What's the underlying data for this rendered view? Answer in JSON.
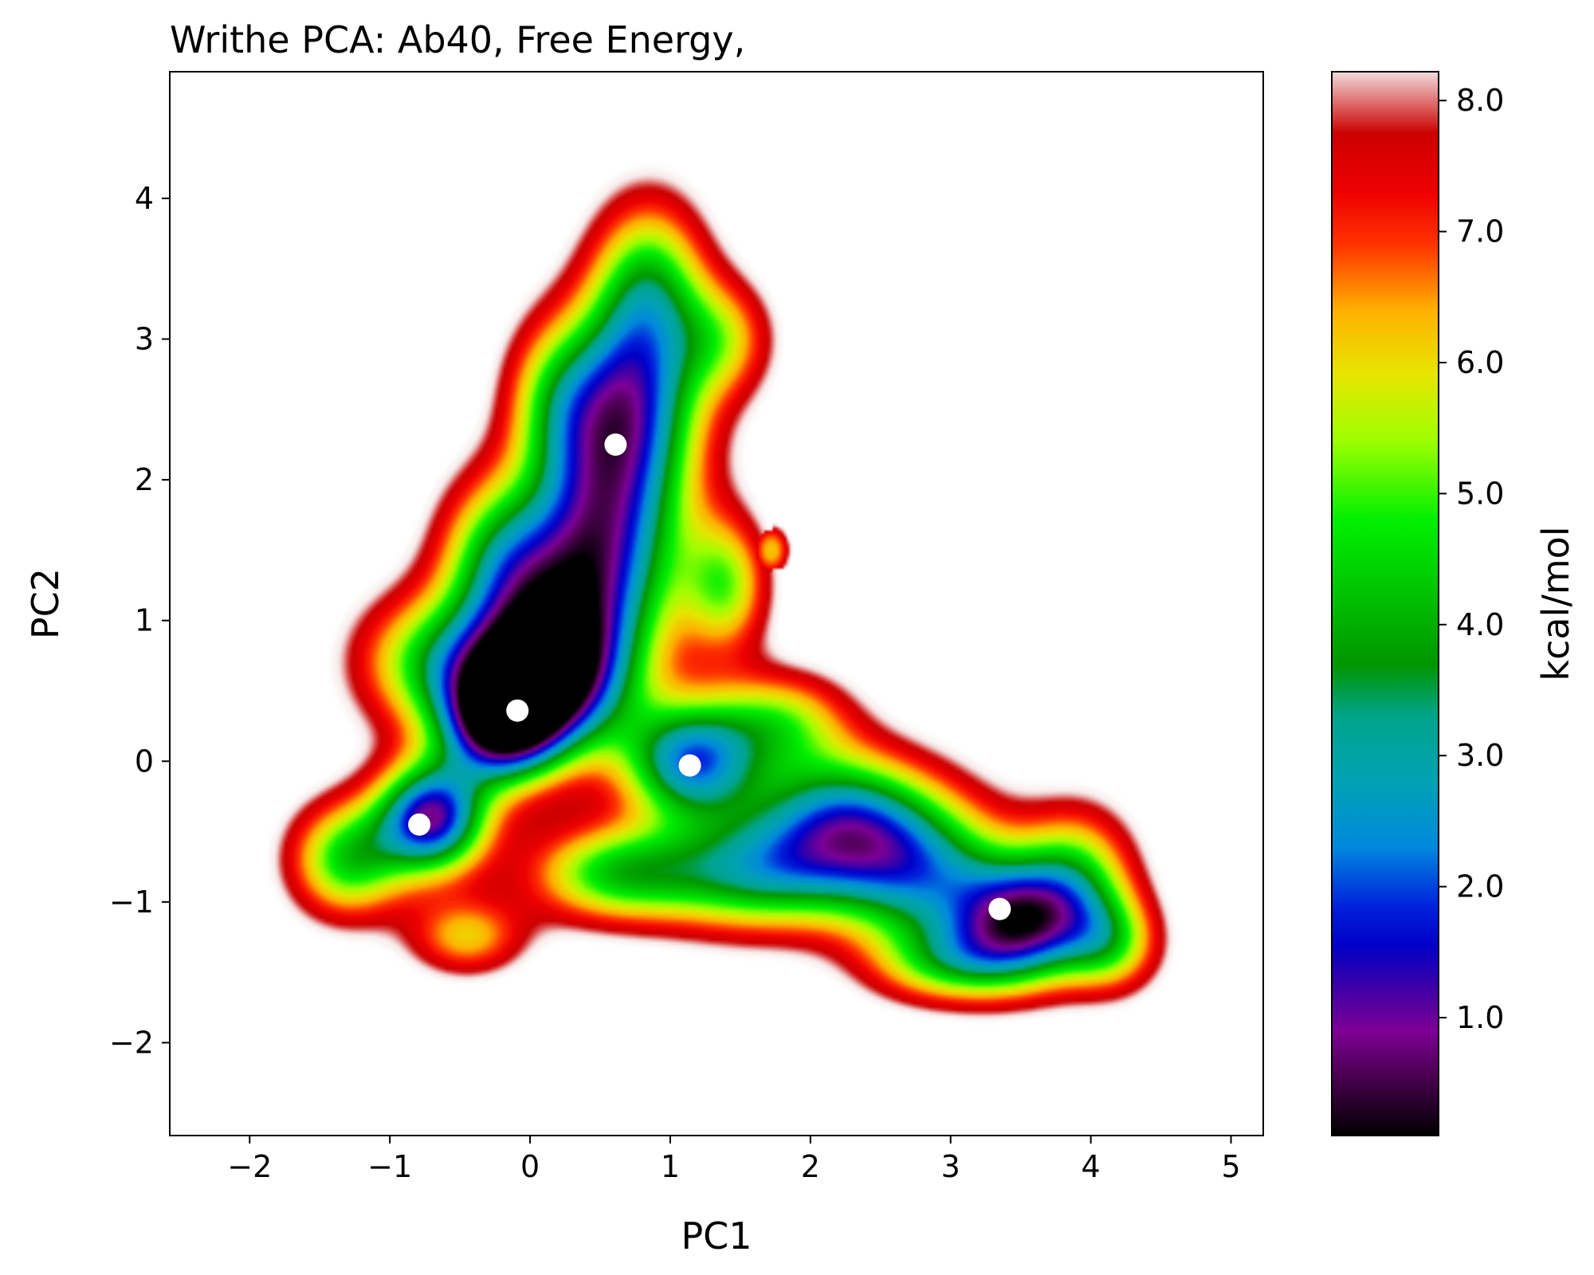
{
  "chart_data": {
    "type": "heatmap",
    "title": "Writhe PCA: Ab40, Free Energy,",
    "xlabel": "PC1",
    "ylabel": "PC2",
    "xlim": [
      -2.57,
      5.23
    ],
    "ylim": [
      -2.66,
      4.9
    ],
    "xticks": [
      -2,
      -1,
      0,
      1,
      2,
      3,
      4,
      5
    ],
    "xtick_labels": [
      "−2",
      "−1",
      "0",
      "1",
      "2",
      "3",
      "4",
      "5"
    ],
    "yticks": [
      -2,
      -1,
      0,
      1,
      2,
      3,
      4
    ],
    "ytick_labels": [
      "−2",
      "−1",
      "0",
      "1",
      "2",
      "3",
      "4"
    ],
    "grid": false,
    "colorbar": {
      "label": "kcal/mol",
      "range": [
        0.1,
        8.22
      ],
      "ticks": [
        1.0,
        2.0,
        3.0,
        4.0,
        5.0,
        6.0,
        7.0,
        8.0
      ],
      "tick_labels": [
        "1.0",
        "2.0",
        "3.0",
        "4.0",
        "5.0",
        "6.0",
        "7.0",
        "8.0"
      ],
      "colormap": [
        {
          "v": 0.1,
          "color": "#000000"
        },
        {
          "v": 0.55,
          "color": "#4a004f"
        },
        {
          "v": 0.9,
          "color": "#7d0096"
        },
        {
          "v": 1.25,
          "color": "#3a00a8"
        },
        {
          "v": 1.55,
          "color": "#0000c8"
        },
        {
          "v": 1.85,
          "color": "#0022dd"
        },
        {
          "v": 2.3,
          "color": "#0088dd"
        },
        {
          "v": 2.8,
          "color": "#00a2b4"
        },
        {
          "v": 3.3,
          "color": "#00a48a"
        },
        {
          "v": 3.7,
          "color": "#009600"
        },
        {
          "v": 4.2,
          "color": "#00c000"
        },
        {
          "v": 4.8,
          "color": "#00f000"
        },
        {
          "v": 5.4,
          "color": "#9dff00"
        },
        {
          "v": 5.9,
          "color": "#e6e600"
        },
        {
          "v": 6.4,
          "color": "#ffb000"
        },
        {
          "v": 6.9,
          "color": "#ff3300"
        },
        {
          "v": 7.3,
          "color": "#ee0000"
        },
        {
          "v": 7.75,
          "color": "#cc0000"
        },
        {
          "v": 8.22,
          "color": "#f2dada"
        }
      ]
    },
    "minima": [
      {
        "x": -0.79,
        "y": -0.45
      },
      {
        "x": -0.09,
        "y": 0.36
      },
      {
        "x": 0.61,
        "y": 2.25
      },
      {
        "x": 1.14,
        "y": -0.03
      },
      {
        "x": 3.35,
        "y": -1.05
      }
    ],
    "minima_color": "#ffffff",
    "free_energy_landscape": {
      "basins": [
        {
          "x": -0.7,
          "y": -0.4,
          "sx": 0.28,
          "sy": 0.28,
          "depth": 7.8
        },
        {
          "x": -0.2,
          "y": 0.25,
          "sx": 0.3,
          "sy": 0.3,
          "depth": 7.0
        },
        {
          "x": 0.1,
          "y": 0.55,
          "sx": 0.4,
          "sy": 0.35,
          "depth": 6.2
        },
        {
          "x": 0.2,
          "y": 1.0,
          "sx": 0.45,
          "sy": 0.5,
          "depth": 5.6
        },
        {
          "x": 0.55,
          "y": 1.75,
          "sx": 0.4,
          "sy": 0.6,
          "depth": 6.0
        },
        {
          "x": 0.7,
          "y": 2.6,
          "sx": 0.38,
          "sy": 0.5,
          "depth": 5.4
        },
        {
          "x": 0.85,
          "y": 3.4,
          "sx": 0.3,
          "sy": 0.45,
          "depth": 4.2
        },
        {
          "x": 1.4,
          "y": 3.0,
          "sx": 0.25,
          "sy": 0.3,
          "depth": 2.6
        },
        {
          "x": 1.15,
          "y": 0.0,
          "sx": 0.35,
          "sy": 0.3,
          "depth": 6.6
        },
        {
          "x": 1.4,
          "y": 1.25,
          "sx": 0.22,
          "sy": 0.35,
          "depth": 3.6
        },
        {
          "x": 1.8,
          "y": 0.3,
          "sx": 0.35,
          "sy": 0.25,
          "depth": 3.2
        },
        {
          "x": 2.2,
          "y": -0.4,
          "sx": 0.45,
          "sy": 0.35,
          "depth": 5.5
        },
        {
          "x": 2.8,
          "y": -0.8,
          "sx": 0.45,
          "sy": 0.4,
          "depth": 5.4
        },
        {
          "x": 3.5,
          "y": -1.15,
          "sx": 0.35,
          "sy": 0.3,
          "depth": 6.8
        },
        {
          "x": 3.9,
          "y": -0.8,
          "sx": 0.3,
          "sy": 0.35,
          "depth": 3.6
        },
        {
          "x": 4.15,
          "y": -1.3,
          "sx": 0.25,
          "sy": 0.25,
          "depth": 3.4
        },
        {
          "x": 0.6,
          "y": -0.8,
          "sx": 0.45,
          "sy": 0.25,
          "depth": 4.4
        },
        {
          "x": 1.6,
          "y": -0.8,
          "sx": 0.5,
          "sy": 0.3,
          "depth": 4.8
        },
        {
          "x": -1.3,
          "y": -0.7,
          "sx": 0.3,
          "sy": 0.3,
          "depth": 4.6
        },
        {
          "x": -0.7,
          "y": 0.7,
          "sx": 0.4,
          "sy": 0.35,
          "depth": 4.0
        },
        {
          "x": -0.25,
          "y": 1.5,
          "sx": 0.3,
          "sy": 0.4,
          "depth": 3.2
        },
        {
          "x": 0.15,
          "y": 2.6,
          "sx": 0.25,
          "sy": 0.4,
          "depth": 2.2
        },
        {
          "x": 3.0,
          "y": -1.45,
          "sx": 0.4,
          "sy": 0.2,
          "depth": 3.0
        },
        {
          "x": -0.45,
          "y": -1.25,
          "sx": 0.3,
          "sy": 0.2,
          "depth": 3.0
        }
      ],
      "isolated_spot": {
        "x": 1.72,
        "y": 1.5,
        "value": 6.2
      }
    }
  }
}
